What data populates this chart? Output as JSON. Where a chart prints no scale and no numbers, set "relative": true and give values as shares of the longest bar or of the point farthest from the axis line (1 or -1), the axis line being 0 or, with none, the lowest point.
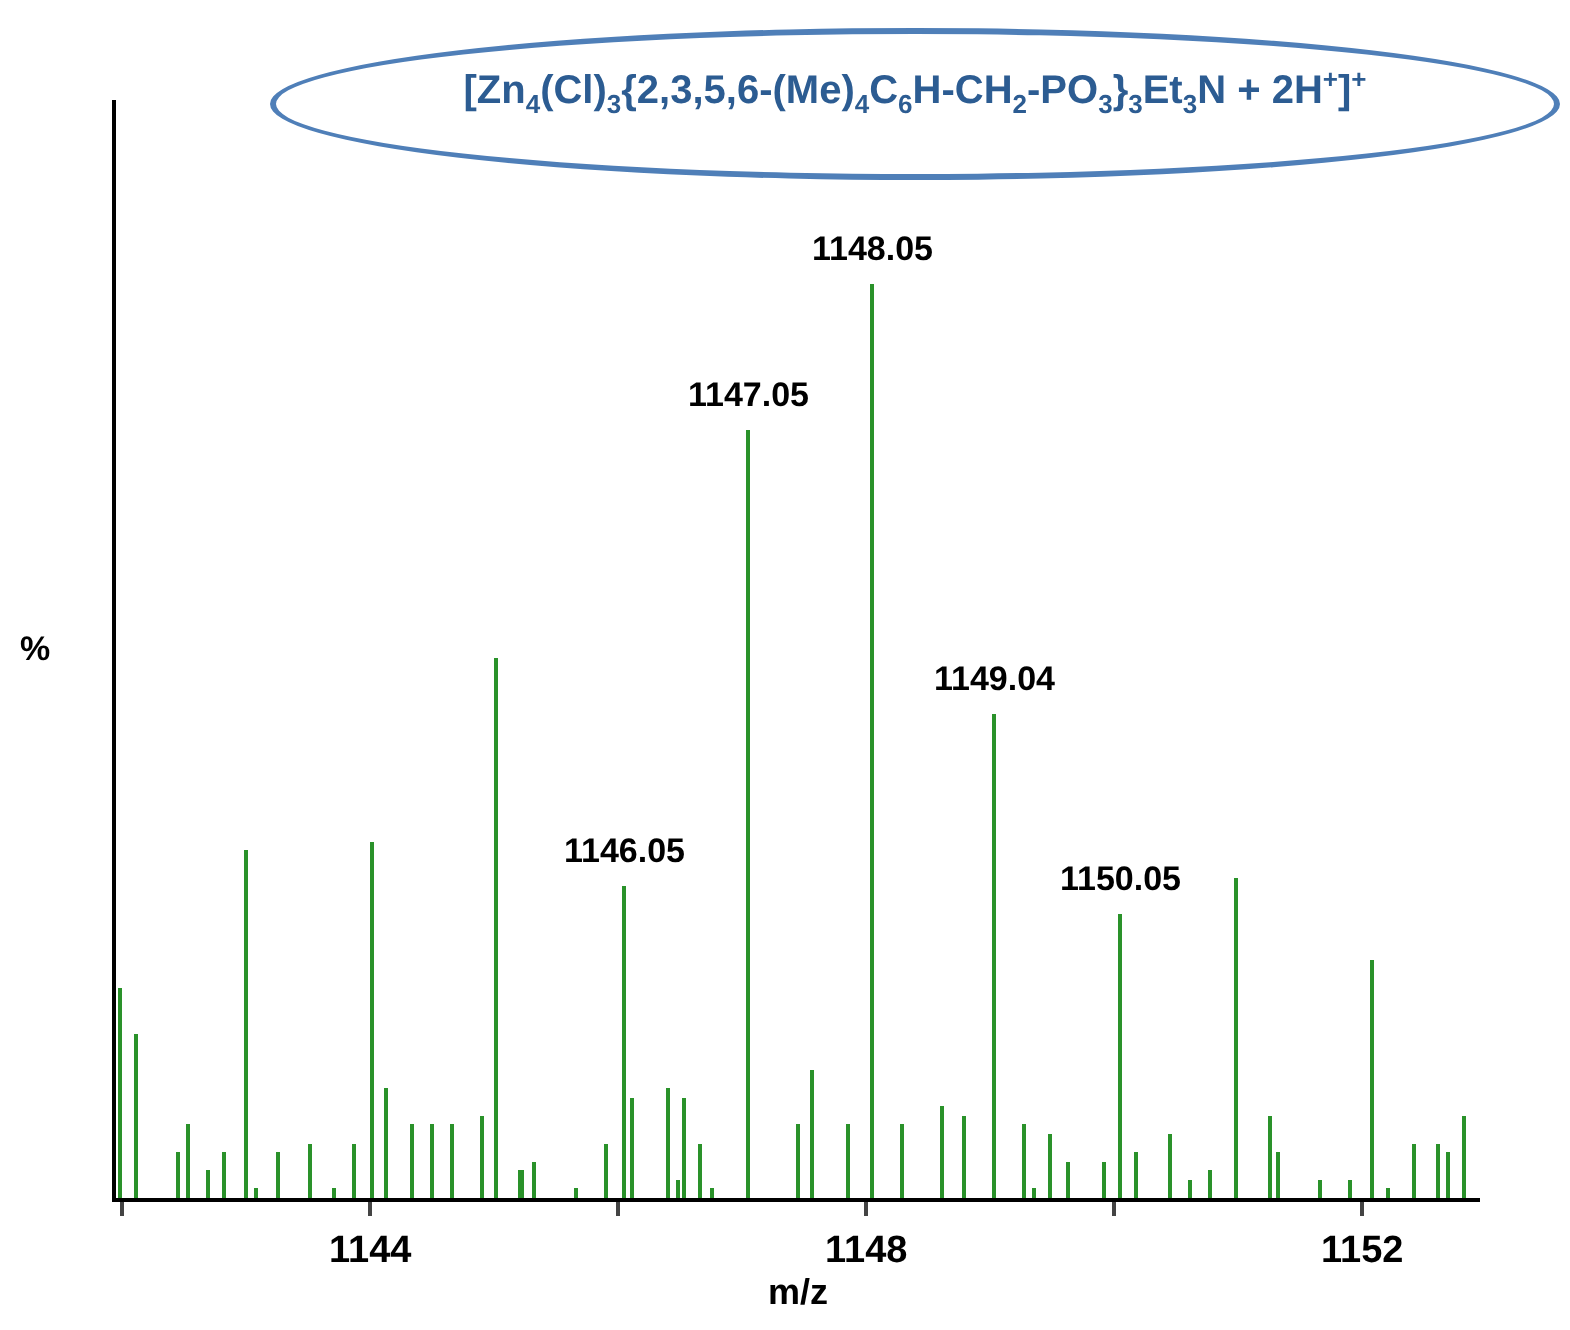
{
  "chart_data": {
    "type": "bar",
    "relative": true,
    "title": "[Zn$_{4}$(Cl)$_{3}${2,3,5,6-(Me)$_{4}$C$_{6}$H-CH$_{2}$-PO$_{3}$}$_{3}$Et$_{3}$N + 2H$^{+}$]$^{+}$",
    "xlabel": "m/z",
    "ylabel": "%",
    "x": [
      1141.98,
      1142.11,
      1142.46,
      1142.54,
      1142.69,
      1142.82,
      1143.0,
      1143.09,
      1143.26,
      1143.52,
      1143.71,
      1143.87,
      1144.02,
      1144.13,
      1144.34,
      1144.5,
      1144.67,
      1144.9,
      1145.02,
      1145.22,
      1145.33,
      1145.66,
      1145.9,
      1146.05,
      1146.12,
      1146.4,
      1146.48,
      1146.54,
      1146.66,
      1146.76,
      1147.05,
      1147.46,
      1147.57,
      1147.86,
      1148.05,
      1148.29,
      1148.61,
      1148.8,
      1149.04,
      1149.28,
      1149.36,
      1149.49,
      1149.63,
      1149.92,
      1150.05,
      1150.18,
      1150.46,
      1150.61,
      1150.78,
      1150.99,
      1151.26,
      1151.33,
      1151.66,
      1151.9,
      1152.08,
      1152.21,
      1152.42,
      1152.62,
      1152.69,
      1152.83
    ],
    "values": [
      0.23,
      0.18,
      0.05,
      0.08,
      0.03,
      0.05,
      0.38,
      0.01,
      0.05,
      0.06,
      0.01,
      0.06,
      0.39,
      0.12,
      0.08,
      0.08,
      0.08,
      0.09,
      0.59,
      0.03,
      0.04,
      0.01,
      0.06,
      0.34,
      0.11,
      0.12,
      0.02,
      0.11,
      0.06,
      0.01,
      0.84,
      0.08,
      0.14,
      0.08,
      1,
      0.08,
      0.1,
      0.09,
      0.53,
      0.08,
      0.01,
      0.07,
      0.04,
      0.04,
      0.31,
      0.05,
      0.07,
      0.02,
      0.03,
      0.35,
      0.09,
      0.05,
      0.02,
      0.02,
      0.26,
      0.01,
      0.06,
      0.06,
      0.05,
      0.09
    ],
    "color": "#2a922a",
    "xlim": [
      1141.95,
      1152.95
    ],
    "xticks": [
      {
        "value": 1142,
        "label": null
      },
      1144,
      {
        "value": 1146,
        "label": null
      },
      1148,
      {
        "value": 1150,
        "label": null
      },
      1152
    ],
    "annotations": [
      {
        "text": "1146.05",
        "x": 1146.05,
        "y": 0.34
      },
      {
        "text": "1147.05",
        "x": 1147.05,
        "y": 0.84
      },
      {
        "text": "1148.05",
        "x": 1148.05,
        "y": 1
      },
      {
        "text": "1149.04",
        "x": 1149.04,
        "y": 0.53
      },
      {
        "text": "1150.05",
        "x": 1150.05,
        "y": 0.31
      }
    ],
    "grid": false,
    "legend": false
  }
}
